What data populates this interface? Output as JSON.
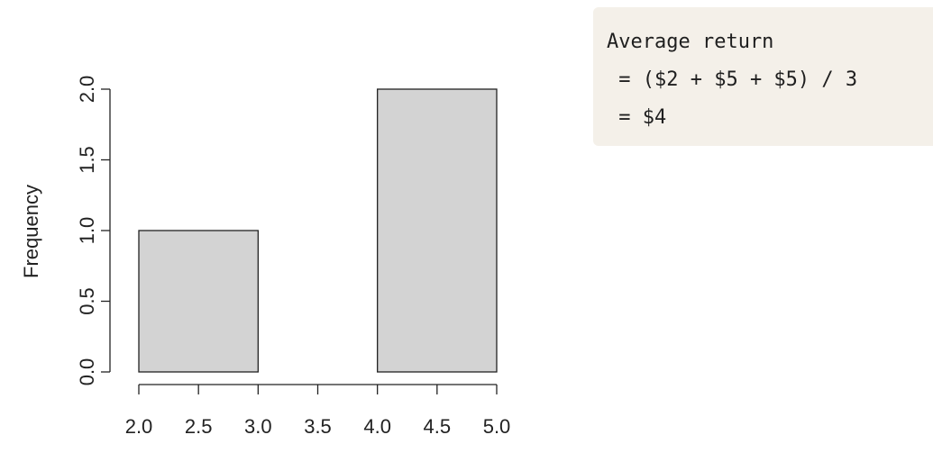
{
  "chart_data": {
    "type": "bar",
    "subtype": "histogram",
    "bins": [
      {
        "start": 2.0,
        "end": 3.0,
        "count": 1
      },
      {
        "start": 3.0,
        "end": 4.0,
        "count": 0
      },
      {
        "start": 4.0,
        "end": 5.0,
        "count": 2
      }
    ],
    "title": "",
    "xlabel": "",
    "ylabel": "Frequency",
    "xlim": [
      2.0,
      5.0
    ],
    "ylim": [
      0,
      2.0
    ],
    "x_ticks": [
      "2.0",
      "2.5",
      "3.0",
      "3.5",
      "4.0",
      "4.5",
      "5.0"
    ],
    "x_tick_values": [
      2.0,
      2.5,
      3.0,
      3.5,
      4.0,
      4.5,
      5.0
    ],
    "y_ticks": [
      "0.0",
      "0.5",
      "1.0",
      "1.5",
      "2.0"
    ],
    "y_tick_values": [
      0.0,
      0.5,
      1.0,
      1.5,
      2.0
    ],
    "grid": false,
    "bar_color": "#d3d3d3",
    "edge_color": "#222222"
  },
  "code_box": {
    "lines": [
      "Average return",
      " = ($2 + $5 + $5) / 3",
      " = $4"
    ],
    "background": "#f4f0e9"
  }
}
